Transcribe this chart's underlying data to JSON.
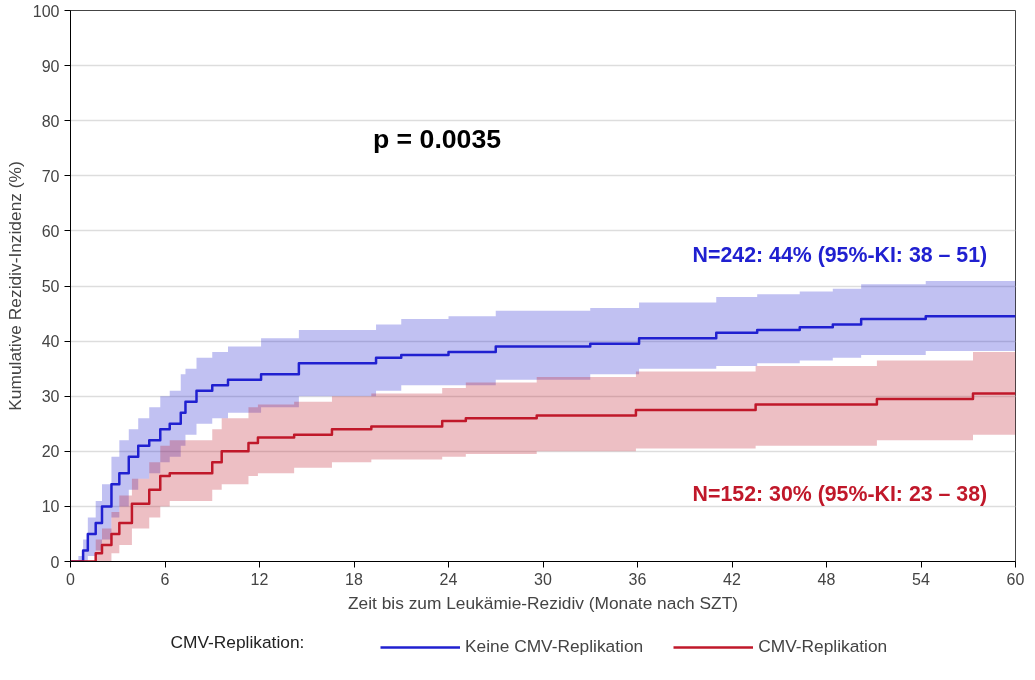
{
  "chart_data": {
    "type": "step",
    "xlabel": "Zeit bis zum Leukämie-Rezidiv (Monate nach SZT)",
    "ylabel": "Kumulative Rezidiv-Inzidenz (%)",
    "legend_title": "CMV-Replikation:",
    "xlim": [
      0,
      60
    ],
    "xticks": [
      0,
      6,
      12,
      18,
      24,
      30,
      36,
      42,
      48,
      54,
      60
    ],
    "ylim": [
      0,
      100
    ],
    "yticks": [
      0,
      10,
      20,
      30,
      40,
      50,
      60,
      70,
      80,
      90,
      100
    ],
    "grid": "y",
    "legend": "bottom",
    "line_style": "solid",
    "marker": "none",
    "annotations": [
      "p = 0.0035",
      "N=242: 44% (95%-KI: 38 – 51)",
      "N=152: 30% (95%-KI: 23 – 38)"
    ],
    "series": [
      {
        "name": "Keine CMV-Replikation",
        "color": "#2020d0",
        "x": [
          0,
          0.5,
          0.8,
          1.1,
          1.6,
          2.0,
          2.6,
          3.1,
          3.7,
          4.3,
          5.0,
          5.7,
          6.3,
          7.0,
          7.3,
          8.0,
          9.0,
          10.0,
          12.1,
          14.5,
          19.4,
          21,
          24,
          27,
          33,
          36.1,
          41,
          43.6,
          46.3,
          48.4,
          50.2,
          54.3,
          60
        ],
        "values": [
          0,
          0,
          2,
          5,
          7,
          10,
          14,
          16,
          19,
          21,
          22,
          24,
          25,
          27,
          29,
          31,
          32,
          33,
          34,
          36,
          37,
          37.5,
          38,
          39,
          39.5,
          40.5,
          41.5,
          42,
          42.5,
          43,
          44,
          44.5,
          44.5
        ],
        "lower": [
          0,
          0,
          0,
          1,
          2,
          4,
          8,
          10,
          13,
          15,
          16,
          18,
          19,
          21,
          23,
          25,
          26,
          27,
          28,
          30,
          31,
          32,
          32,
          33,
          34,
          35,
          35.5,
          36,
          36.5,
          37,
          37.5,
          38.2,
          38.2
        ],
        "upper": [
          0,
          1,
          4,
          8,
          11,
          14,
          19,
          22,
          24,
          26,
          28,
          30,
          31,
          34,
          35,
          37,
          38,
          39,
          40.5,
          42,
          43,
          44,
          44.5,
          45.5,
          46,
          47,
          48,
          48.5,
          49,
          49.5,
          50.3,
          50.9,
          50.9
        ]
      },
      {
        "name": "CMV-Replikation",
        "color": "#c0182a",
        "x": [
          0,
          1.6,
          2.0,
          2.6,
          3.1,
          3.9,
          5.0,
          5.7,
          6.3,
          9.0,
          9.6,
          11.3,
          11.9,
          14.2,
          16.6,
          19.1,
          23.6,
          25.1,
          29.6,
          35.9,
          43.5,
          51.2,
          57.3,
          60
        ],
        "values": [
          0,
          1.5,
          3,
          5,
          7,
          10.5,
          13,
          15.5,
          16,
          18,
          20,
          21.5,
          22.5,
          23,
          24,
          24.5,
          25.5,
          26,
          26.5,
          27.5,
          28.5,
          29.5,
          30.5,
          30.5
        ],
        "lower": [
          0,
          0,
          0,
          1.5,
          3,
          6,
          8,
          10,
          11,
          13,
          14,
          15.5,
          16,
          17,
          18,
          18.5,
          19,
          19.5,
          20,
          20.5,
          21,
          22,
          23,
          23
        ],
        "upper": [
          0,
          4,
          6,
          9,
          12,
          15,
          18,
          21,
          22,
          24,
          26,
          28,
          28.5,
          29,
          30,
          30.5,
          31.5,
          32.5,
          33.5,
          34.5,
          35.5,
          36.5,
          38,
          38
        ]
      }
    ]
  }
}
